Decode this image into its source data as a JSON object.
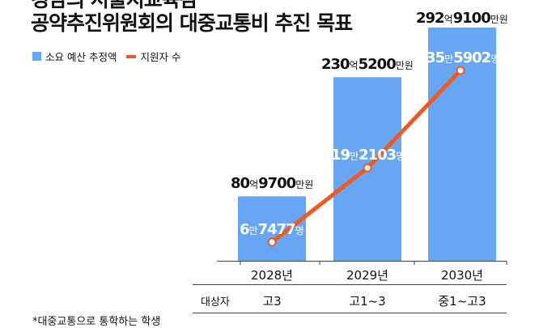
{
  "title_lines": [
    "경남의 서울지교육감",
    "공약추진위원회의 대중교통비 추진 목표"
  ],
  "legend": {
    "budget": "소요 예산 추정액",
    "people": "지원자 수"
  },
  "colors": {
    "bar": "#66A6F5",
    "line": "#F05A1E",
    "axis": "#444444"
  },
  "chart_data": {
    "type": "bar",
    "categories": [
      "2028년",
      "2029년",
      "2030년"
    ],
    "series": [
      {
        "name": "소요 예산 추정액",
        "type": "bar",
        "values": [
          80.97,
          230.52,
          292.91
        ],
        "unit": "억원"
      },
      {
        "name": "지원자 수",
        "type": "line",
        "values": [
          67477,
          192103,
          355902
        ],
        "unit": "명"
      }
    ],
    "budget_labels": [
      {
        "a": "80",
        "b": "억",
        "c": "9700",
        "d": "만원"
      },
      {
        "a": "230",
        "b": "억",
        "c": "5200",
        "d": "만원"
      },
      {
        "a": "292",
        "b": "억",
        "c": "9100",
        "d": "만원"
      }
    ],
    "people_labels": [
      {
        "a": "6",
        "b": "만",
        "c": "7477",
        "d": "명"
      },
      {
        "a": "19",
        "b": "만",
        "c": "2103",
        "d": "명"
      },
      {
        "a": "35",
        "b": "만",
        "c": "5902",
        "d": "명"
      }
    ]
  },
  "table": {
    "row_title": "대상자",
    "targets": [
      "고3",
      "고1~3",
      "중1~고3"
    ]
  },
  "footnote": "*대중교통으로 통학하는 학생"
}
